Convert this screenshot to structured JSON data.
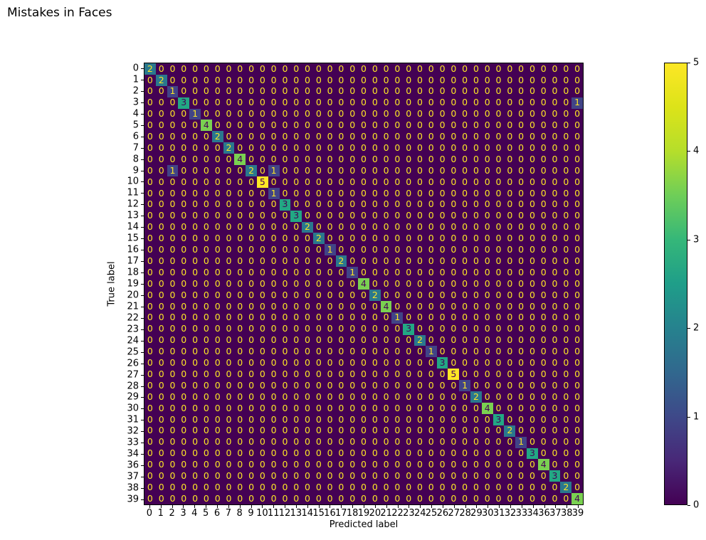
{
  "chart_data": {
    "type": "heatmap",
    "title": "Mistakes in Faces",
    "xlabel": "Predicted label",
    "ylabel": "True label",
    "labels": [
      "0",
      "1",
      "2",
      "3",
      "4",
      "5",
      "6",
      "7",
      "8",
      "9",
      "10",
      "11",
      "12",
      "13",
      "14",
      "15",
      "16",
      "17",
      "18",
      "19",
      "20",
      "21",
      "22",
      "23",
      "24",
      "25",
      "26",
      "27",
      "28",
      "29",
      "30",
      "31",
      "32",
      "33",
      "34",
      "36",
      "37",
      "38",
      "39"
    ],
    "diagonal": [
      2,
      2,
      1,
      3,
      1,
      4,
      2,
      2,
      4,
      2,
      5,
      1,
      3,
      3,
      2,
      2,
      1,
      2,
      1,
      4,
      2,
      4,
      1,
      3,
      2,
      1,
      3,
      5,
      1,
      2,
      4,
      3,
      2,
      1,
      3,
      4,
      3,
      2,
      4
    ],
    "off_diagonal": [
      {
        "row": 3,
        "col": 38,
        "value": 1
      },
      {
        "row": 9,
        "col": 2,
        "value": 1
      },
      {
        "row": 9,
        "col": 11,
        "value": 1
      }
    ],
    "vmin": 0,
    "vmax": 5,
    "colorbar_ticks": [
      "0",
      "1",
      "2",
      "3",
      "4",
      "5"
    ],
    "legend_position": "right-colorbar",
    "grid": "off",
    "colormap": {
      "name": "viridis",
      "value_colors": {
        "0": "#440154",
        "1": "#414487",
        "2": "#2a788e",
        "3": "#22a884",
        "4": "#7ad151",
        "5": "#fde725"
      },
      "text_color_low": "#fde725",
      "text_color_high": "#440154",
      "text_threshold": 2.5
    }
  }
}
